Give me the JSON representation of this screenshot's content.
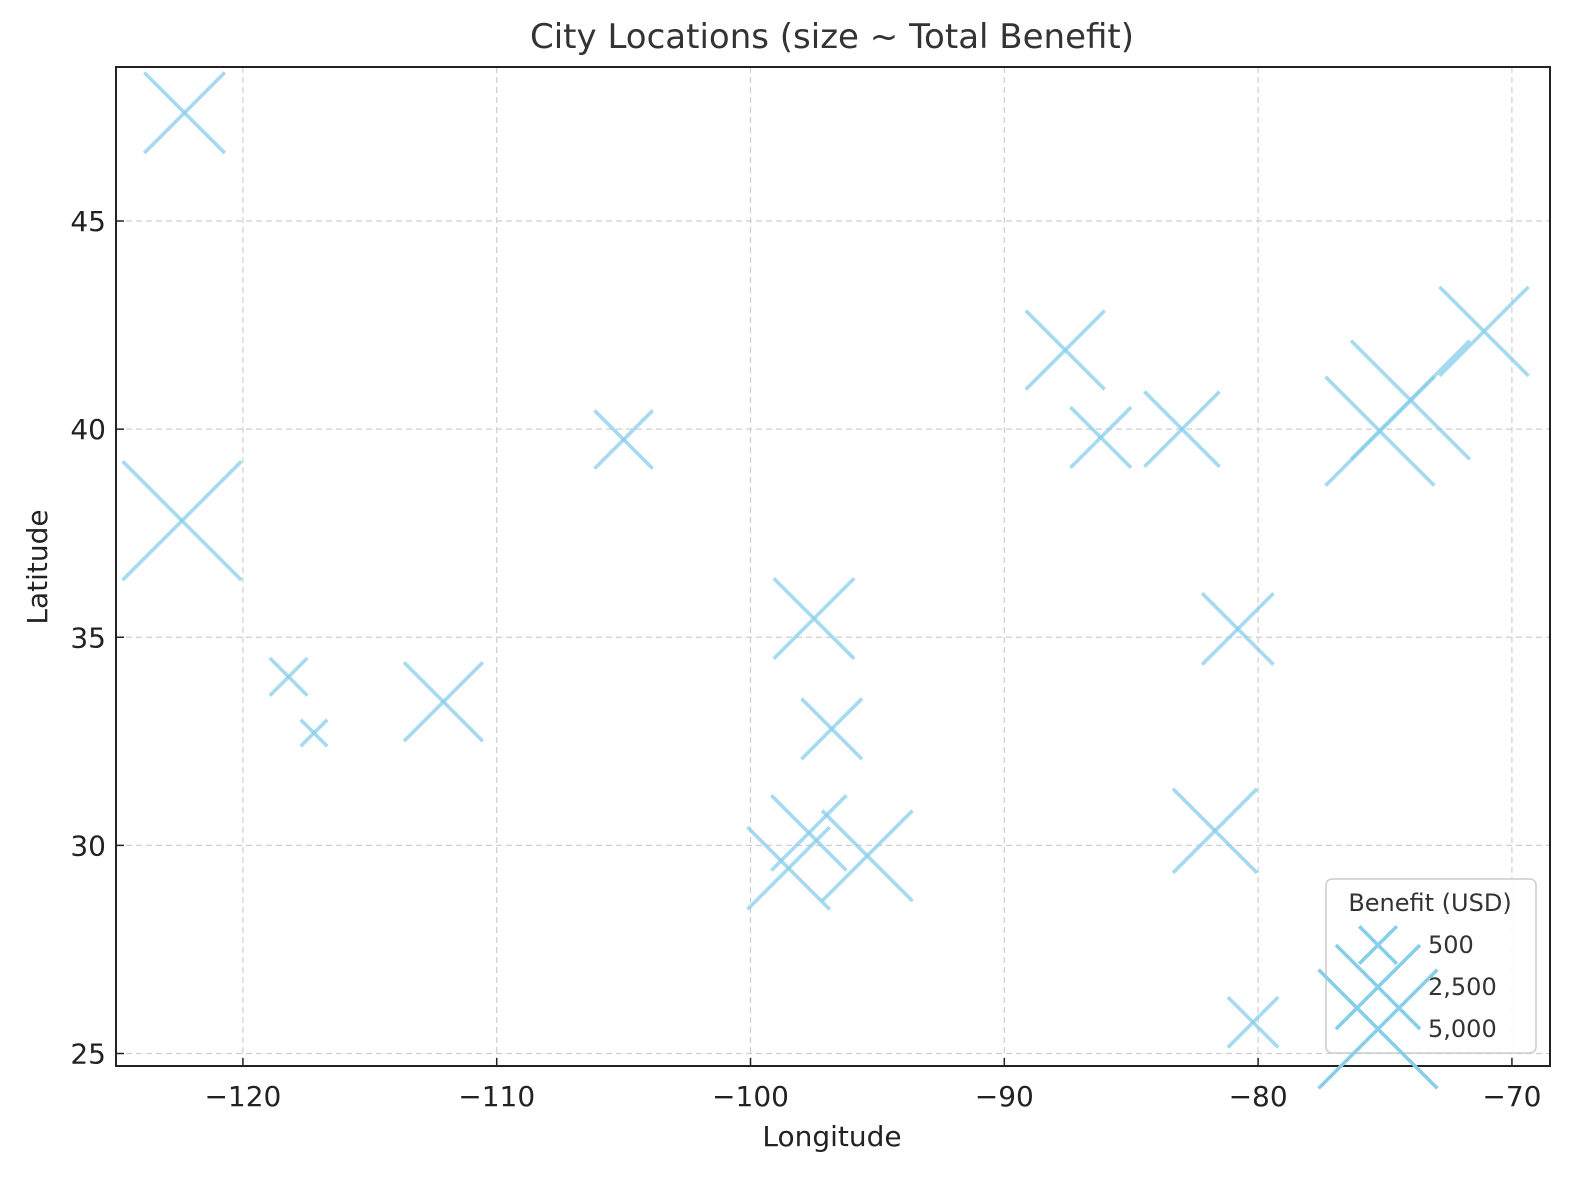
{
  "chart_data": {
    "type": "scatter",
    "title": "City Locations (size ~ Total Benefit)",
    "xlabel": "Longitude",
    "ylabel": "Latitude",
    "xlim": [
      -125,
      -68.5
    ],
    "ylim": [
      24.7,
      48.7
    ],
    "xticks": [
      -120,
      -110,
      -100,
      -90,
      -80,
      -70
    ],
    "yticks": [
      25,
      30,
      35,
      40,
      45
    ],
    "xtick_labels": [
      "−120",
      "−110",
      "−100",
      "−90",
      "−80",
      "−70"
    ],
    "ytick_labels": [
      "25",
      "30",
      "35",
      "40",
      "45"
    ],
    "grid": true,
    "marker": "x",
    "color": "#87CEEB",
    "series": [
      {
        "points": [
          {
            "x": -122.3,
            "y": 47.6,
            "benefit": 2300
          },
          {
            "x": -122.4,
            "y": 37.8,
            "benefit": 5000
          },
          {
            "x": -118.2,
            "y": 34.05,
            "benefit": 500
          },
          {
            "x": -117.2,
            "y": 32.7,
            "benefit": 250
          },
          {
            "x": -112.1,
            "y": 33.45,
            "benefit": 2200
          },
          {
            "x": -105.0,
            "y": 39.75,
            "benefit": 1200
          },
          {
            "x": -97.5,
            "y": 35.45,
            "benefit": 2300
          },
          {
            "x": -96.8,
            "y": 32.8,
            "benefit": 1300
          },
          {
            "x": -97.7,
            "y": 30.3,
            "benefit": 2000
          },
          {
            "x": -98.5,
            "y": 29.45,
            "benefit": 2400
          },
          {
            "x": -95.4,
            "y": 29.75,
            "benefit": 2900
          },
          {
            "x": -87.6,
            "y": 41.9,
            "benefit": 2200
          },
          {
            "x": -86.2,
            "y": 39.8,
            "benefit": 1300
          },
          {
            "x": -83.0,
            "y": 40.0,
            "benefit": 2000
          },
          {
            "x": -80.8,
            "y": 35.2,
            "benefit": 1800
          },
          {
            "x": -81.7,
            "y": 30.35,
            "benefit": 2500
          },
          {
            "x": -80.2,
            "y": 25.75,
            "benefit": 900
          },
          {
            "x": -75.2,
            "y": 39.95,
            "benefit": 4200
          },
          {
            "x": -74.0,
            "y": 40.7,
            "benefit": 5000
          },
          {
            "x": -71.1,
            "y": 42.35,
            "benefit": 2800
          }
        ]
      }
    ],
    "legend": {
      "title": "Benefit (USD)",
      "placement": "lower right",
      "entries": [
        {
          "label": "500",
          "benefit": 500
        },
        {
          "label": "2,500",
          "benefit": 2500
        },
        {
          "label": "5,000",
          "benefit": 5000
        }
      ]
    }
  }
}
